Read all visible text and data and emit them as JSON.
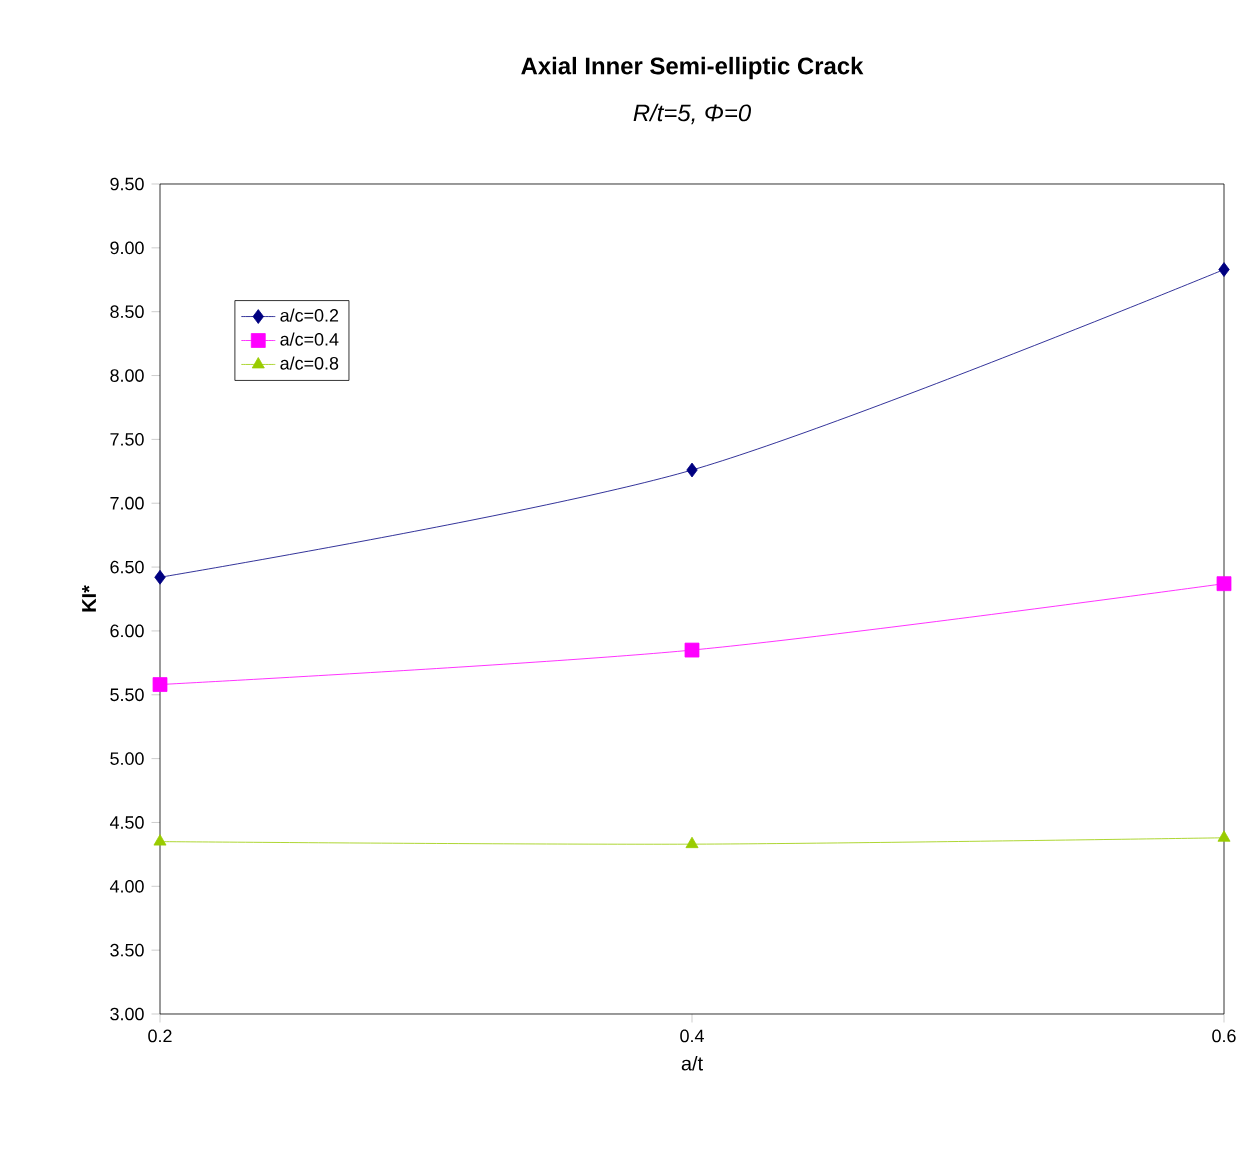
{
  "chart_data": {
    "type": "line",
    "title": "Axial Inner Semi-elliptic Crack",
    "subtitle": "R/t=5, Φ=0",
    "xlabel": "a/t",
    "ylabel": "KI*",
    "x": [
      0.2,
      0.4,
      0.6
    ],
    "series": [
      {
        "name": "a/c=0.2",
        "color": "#000080",
        "marker": "diamond",
        "values": [
          6.42,
          7.26,
          8.83
        ]
      },
      {
        "name": "a/c=0.4",
        "color": "#ff00ff",
        "marker": "square",
        "values": [
          5.58,
          5.85,
          6.37
        ]
      },
      {
        "name": "a/c=0.8",
        "color": "#99cc00",
        "marker": "triangle",
        "values": [
          4.35,
          4.33,
          4.38
        ]
      }
    ],
    "xlim": [
      0.2,
      0.6
    ],
    "xticks": [
      0.2,
      0.4,
      0.6
    ],
    "ylim": [
      3.0,
      9.5
    ],
    "yticks": [
      {
        "value": 3.0,
        "label": "3.00"
      },
      {
        "value": 3.5,
        "label": "3.50"
      },
      {
        "value": 4.0,
        "label": "4.00"
      },
      {
        "value": 4.5,
        "label": "4.50"
      },
      {
        "value": 5.0,
        "label": "5.00"
      },
      {
        "value": 5.5,
        "label": "5.50"
      },
      {
        "value": 6.0,
        "label": "6.00"
      },
      {
        "value": 6.5,
        "label": "6.50"
      },
      {
        "value": 7.0,
        "label": "7.00"
      },
      {
        "value": 7.5,
        "label": "7.50"
      },
      {
        "value": 8.0,
        "label": "8.00"
      },
      {
        "value": 8.5,
        "label": "8.50"
      },
      {
        "value": 9.0,
        "label": "9.00"
      },
      {
        "value": 9.5,
        "label": "9.50"
      }
    ],
    "grid": false,
    "legend": "top left",
    "line_style": "solid"
  }
}
